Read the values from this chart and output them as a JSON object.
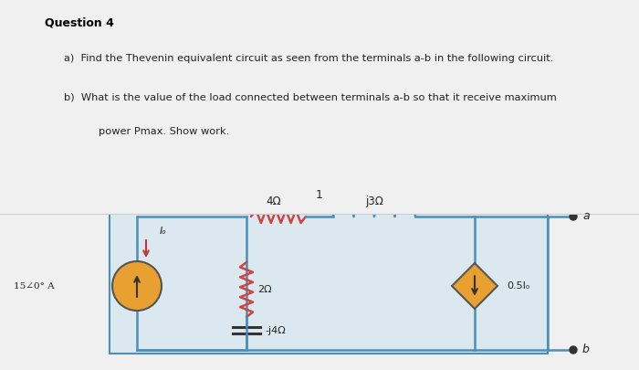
{
  "title_text": "Question 4",
  "line1": "a)  Find the Thevenin equivalent circuit as seen from the terminals a-b in the following circuit.",
  "line2": "b)  What is the value of the load connected between terminals a-b so that it receive maximum",
  "line3": "      power Pmax. Show work.",
  "page_num": "1",
  "top_bg": "#ffffff",
  "bottom_bg": "#e8e8e8",
  "circuit_bg": "#dce8f0",
  "circuit_border": "#4a90b8",
  "wire_color": "#4a90b8",
  "resistor_color": "#cc4444",
  "inductor_color": "#4a90b8",
  "cs_color": "#e8a030",
  "dep_cs_color": "#e8a030",
  "text_color": "#222222",
  "label_4ohm": "4Ω",
  "label_j3ohm": "j3Ω",
  "label_2ohm": "2Ω",
  "label_mj4ohm": "-j4Ω",
  "label_15A": "15∠°° A",
  "label_05Io": "0.5Iₒ",
  "label_Io": "Iₒ",
  "label_a": "a",
  "label_b": "b"
}
